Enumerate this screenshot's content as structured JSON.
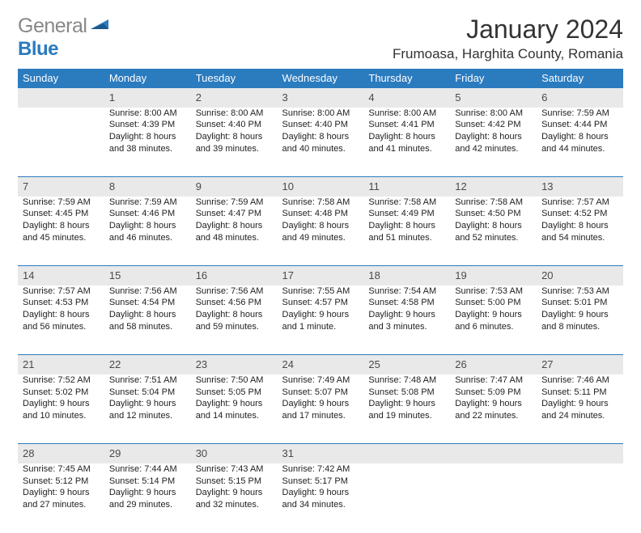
{
  "logo": {
    "part1": "General",
    "part2": "Blue"
  },
  "title": "January 2024",
  "location": "Frumoasa, Harghita County, Romania",
  "colors": {
    "header_bg": "#2b7bbf",
    "daynum_bg": "#e9e9e9",
    "border": "#2b7bbf"
  },
  "weekdays": [
    "Sunday",
    "Monday",
    "Tuesday",
    "Wednesday",
    "Thursday",
    "Friday",
    "Saturday"
  ],
  "first_weekday_index": 1,
  "days": [
    {
      "n": 1,
      "sunrise": "8:00 AM",
      "sunset": "4:39 PM",
      "daylight": "8 hours and 38 minutes."
    },
    {
      "n": 2,
      "sunrise": "8:00 AM",
      "sunset": "4:40 PM",
      "daylight": "8 hours and 39 minutes."
    },
    {
      "n": 3,
      "sunrise": "8:00 AM",
      "sunset": "4:40 PM",
      "daylight": "8 hours and 40 minutes."
    },
    {
      "n": 4,
      "sunrise": "8:00 AM",
      "sunset": "4:41 PM",
      "daylight": "8 hours and 41 minutes."
    },
    {
      "n": 5,
      "sunrise": "8:00 AM",
      "sunset": "4:42 PM",
      "daylight": "8 hours and 42 minutes."
    },
    {
      "n": 6,
      "sunrise": "7:59 AM",
      "sunset": "4:44 PM",
      "daylight": "8 hours and 44 minutes."
    },
    {
      "n": 7,
      "sunrise": "7:59 AM",
      "sunset": "4:45 PM",
      "daylight": "8 hours and 45 minutes."
    },
    {
      "n": 8,
      "sunrise": "7:59 AM",
      "sunset": "4:46 PM",
      "daylight": "8 hours and 46 minutes."
    },
    {
      "n": 9,
      "sunrise": "7:59 AM",
      "sunset": "4:47 PM",
      "daylight": "8 hours and 48 minutes."
    },
    {
      "n": 10,
      "sunrise": "7:58 AM",
      "sunset": "4:48 PM",
      "daylight": "8 hours and 49 minutes."
    },
    {
      "n": 11,
      "sunrise": "7:58 AM",
      "sunset": "4:49 PM",
      "daylight": "8 hours and 51 minutes."
    },
    {
      "n": 12,
      "sunrise": "7:58 AM",
      "sunset": "4:50 PM",
      "daylight": "8 hours and 52 minutes."
    },
    {
      "n": 13,
      "sunrise": "7:57 AM",
      "sunset": "4:52 PM",
      "daylight": "8 hours and 54 minutes."
    },
    {
      "n": 14,
      "sunrise": "7:57 AM",
      "sunset": "4:53 PM",
      "daylight": "8 hours and 56 minutes."
    },
    {
      "n": 15,
      "sunrise": "7:56 AM",
      "sunset": "4:54 PM",
      "daylight": "8 hours and 58 minutes."
    },
    {
      "n": 16,
      "sunrise": "7:56 AM",
      "sunset": "4:56 PM",
      "daylight": "8 hours and 59 minutes."
    },
    {
      "n": 17,
      "sunrise": "7:55 AM",
      "sunset": "4:57 PM",
      "daylight": "9 hours and 1 minute."
    },
    {
      "n": 18,
      "sunrise": "7:54 AM",
      "sunset": "4:58 PM",
      "daylight": "9 hours and 3 minutes."
    },
    {
      "n": 19,
      "sunrise": "7:53 AM",
      "sunset": "5:00 PM",
      "daylight": "9 hours and 6 minutes."
    },
    {
      "n": 20,
      "sunrise": "7:53 AM",
      "sunset": "5:01 PM",
      "daylight": "9 hours and 8 minutes."
    },
    {
      "n": 21,
      "sunrise": "7:52 AM",
      "sunset": "5:02 PM",
      "daylight": "9 hours and 10 minutes."
    },
    {
      "n": 22,
      "sunrise": "7:51 AM",
      "sunset": "5:04 PM",
      "daylight": "9 hours and 12 minutes."
    },
    {
      "n": 23,
      "sunrise": "7:50 AM",
      "sunset": "5:05 PM",
      "daylight": "9 hours and 14 minutes."
    },
    {
      "n": 24,
      "sunrise": "7:49 AM",
      "sunset": "5:07 PM",
      "daylight": "9 hours and 17 minutes."
    },
    {
      "n": 25,
      "sunrise": "7:48 AM",
      "sunset": "5:08 PM",
      "daylight": "9 hours and 19 minutes."
    },
    {
      "n": 26,
      "sunrise": "7:47 AM",
      "sunset": "5:09 PM",
      "daylight": "9 hours and 22 minutes."
    },
    {
      "n": 27,
      "sunrise": "7:46 AM",
      "sunset": "5:11 PM",
      "daylight": "9 hours and 24 minutes."
    },
    {
      "n": 28,
      "sunrise": "7:45 AM",
      "sunset": "5:12 PM",
      "daylight": "9 hours and 27 minutes."
    },
    {
      "n": 29,
      "sunrise": "7:44 AM",
      "sunset": "5:14 PM",
      "daylight": "9 hours and 29 minutes."
    },
    {
      "n": 30,
      "sunrise": "7:43 AM",
      "sunset": "5:15 PM",
      "daylight": "9 hours and 32 minutes."
    },
    {
      "n": 31,
      "sunrise": "7:42 AM",
      "sunset": "5:17 PM",
      "daylight": "9 hours and 34 minutes."
    }
  ]
}
